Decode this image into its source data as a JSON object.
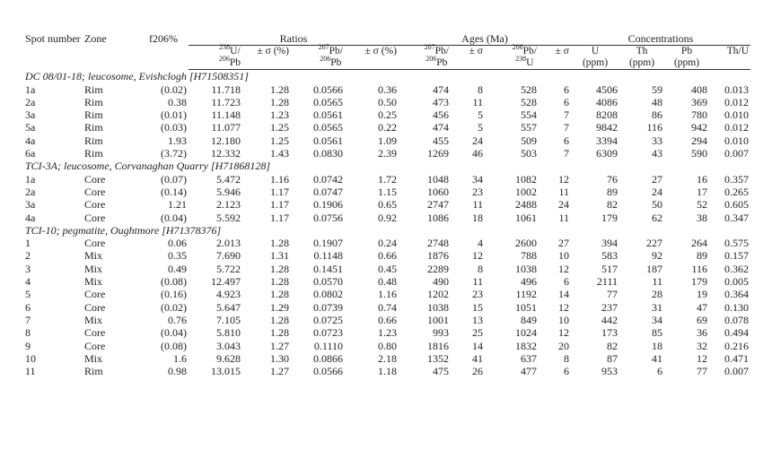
{
  "headers": {
    "spot": "Spot number",
    "zone": "Zone",
    "f206": "f206%",
    "ratios": "Ratios",
    "ages": "Ages (Ma)",
    "concentrations": "Concentrations",
    "sub": {
      "u238_pb206_num": "238",
      "u238_pb206_a": "U/",
      "u238_pb206_den": "206",
      "u238_pb206_b": "Pb",
      "err1": "± σ (%)",
      "pb207_pb206_num": "207",
      "pb207_pb206_a": "Pb/",
      "pb207_pb206_den": "206",
      "pb207_pb206_b": "Pb",
      "err2": "± σ (%)",
      "age76_num": "207",
      "age76_a": "Pb/",
      "age76_den": "206",
      "age76_b": "Pb",
      "err3": "± σ",
      "age68_num": "206",
      "age68_a": "Pb/",
      "age68_den": "238",
      "age68_b": "U",
      "err4": "± σ",
      "u": "U",
      "u_unit": "(ppm)",
      "th": "Th",
      "th_unit": "(ppm)",
      "pb": "Pb",
      "pb_unit": "(ppm)",
      "thu": "Th/U"
    }
  },
  "sections": [
    {
      "title": "DC 08/01-18; leucosome, Evishclogh [H71508351]",
      "rows": [
        [
          "1a",
          "Rim",
          "(0.02)",
          "11.718",
          "1.28",
          "0.0566",
          "0.36",
          "474",
          "8",
          "528",
          "6",
          "4506",
          "59",
          "408",
          "0.013"
        ],
        [
          "2a",
          "Rim",
          "0.38",
          "11.723",
          "1.28",
          "0.0565",
          "0.50",
          "473",
          "11",
          "528",
          "6",
          "4086",
          "48",
          "369",
          "0.012"
        ],
        [
          "3a",
          "Rim",
          "(0.01)",
          "11.148",
          "1.23",
          "0.0561",
          "0.25",
          "456",
          "5",
          "554",
          "7",
          "8208",
          "86",
          "780",
          "0.010"
        ],
        [
          "5a",
          "Rim",
          "(0.03)",
          "11.077",
          "1.25",
          "0.0565",
          "0.22",
          "474",
          "5",
          "557",
          "7",
          "9842",
          "116",
          "942",
          "0.012"
        ],
        [
          "4a",
          "Rim",
          "1.93",
          "12.180",
          "1.25",
          "0.0561",
          "1.09",
          "455",
          "24",
          "509",
          "6",
          "3394",
          "33",
          "294",
          "0.010"
        ],
        [
          "6a",
          "Rim",
          "(3.72)",
          "12.332",
          "1.43",
          "0.0830",
          "2.39",
          "1269",
          "46",
          "503",
          "7",
          "6309",
          "43",
          "590",
          "0.007"
        ]
      ]
    },
    {
      "title": "TCI-3A; leucosome, Corvanaghan Quarry [H71868128]",
      "rows": [
        [
          "1a",
          "Core",
          "(0.07)",
          "5.472",
          "1.16",
          "0.0742",
          "1.72",
          "1048",
          "34",
          "1082",
          "12",
          "76",
          "27",
          "16",
          "0.357"
        ],
        [
          "2a",
          "Core",
          "(0.14)",
          "5.946",
          "1.17",
          "0.0747",
          "1.15",
          "1060",
          "23",
          "1002",
          "11",
          "89",
          "24",
          "17",
          "0.265"
        ],
        [
          "3a",
          "Core",
          "1.21",
          "2.123",
          "1.17",
          "0.1906",
          "0.65",
          "2747",
          "11",
          "2488",
          "24",
          "82",
          "50",
          "52",
          "0.605"
        ],
        [
          "4a",
          "Core",
          "(0.04)",
          "5.592",
          "1.17",
          "0.0756",
          "0.92",
          "1086",
          "18",
          "1061",
          "11",
          "179",
          "62",
          "38",
          "0.347"
        ]
      ]
    },
    {
      "title": "TCI-10; pegmatite, Oughtmore [H71378376]",
      "rows": [
        [
          "1",
          "Core",
          "0.06",
          "2.013",
          "1.28",
          "0.1907",
          "0.24",
          "2748",
          "4",
          "2600",
          "27",
          "394",
          "227",
          "264",
          "0.575"
        ],
        [
          "2",
          "Mix",
          "0.35",
          "7.690",
          "1.31",
          "0.1148",
          "0.66",
          "1876",
          "12",
          "788",
          "10",
          "583",
          "92",
          "89",
          "0.157"
        ],
        [
          "3",
          "Mix",
          "0.49",
          "5.722",
          "1.28",
          "0.1451",
          "0.45",
          "2289",
          "8",
          "1038",
          "12",
          "517",
          "187",
          "116",
          "0.362"
        ],
        [
          "4",
          "Mix",
          "(0.08)",
          "12.497",
          "1.28",
          "0.0570",
          "0.48",
          "490",
          "11",
          "496",
          "6",
          "2111",
          "11",
          "179",
          "0.005"
        ],
        [
          "5",
          "Core",
          "(0.16)",
          "4.923",
          "1.28",
          "0.0802",
          "1.16",
          "1202",
          "23",
          "1192",
          "14",
          "77",
          "28",
          "19",
          "0.364"
        ],
        [
          "6",
          "Core",
          "(0.02)",
          "5.647",
          "1.29",
          "0.0739",
          "0.74",
          "1038",
          "15",
          "1051",
          "12",
          "237",
          "31",
          "47",
          "0.130"
        ],
        [
          "7",
          "Mix",
          "0.76",
          "7.105",
          "1.28",
          "0.0725",
          "0.66",
          "1001",
          "13",
          "849",
          "10",
          "442",
          "34",
          "69",
          "0.078"
        ],
        [
          "8",
          "Core",
          "(0.04)",
          "5.810",
          "1.28",
          "0.0723",
          "1.23",
          "993",
          "25",
          "1024",
          "12",
          "173",
          "85",
          "36",
          "0.494"
        ],
        [
          "9",
          "Core",
          "(0.08)",
          "3.043",
          "1.27",
          "0.1110",
          "0.80",
          "1816",
          "14",
          "1832",
          "20",
          "82",
          "18",
          "32",
          "0.216"
        ],
        [
          "10",
          "Mix",
          "1.6",
          "9.628",
          "1.30",
          "0.0866",
          "2.18",
          "1352",
          "41",
          "637",
          "8",
          "87",
          "41",
          "12",
          "0.471"
        ],
        [
          "11",
          "Rim",
          "0.98",
          "13.015",
          "1.27",
          "0.0566",
          "1.18",
          "475",
          "26",
          "477",
          "6",
          "953",
          "6",
          "77",
          "0.007"
        ]
      ]
    }
  ]
}
